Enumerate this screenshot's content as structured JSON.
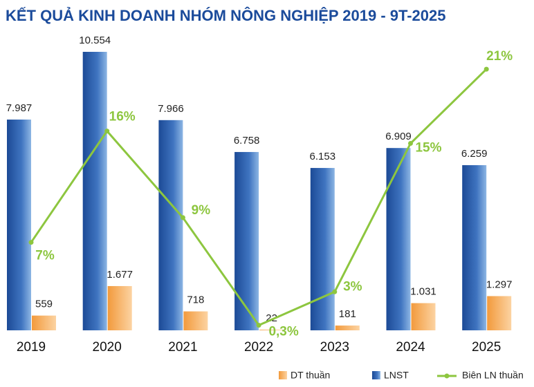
{
  "chart_data": {
    "type": "bar-line",
    "title": "KẾT QUẢ KINH DOANH NHÓM NÔNG NGHIỆP 2019 - 9T-2025",
    "categories": [
      "2019",
      "2020",
      "2021",
      "2022",
      "2023",
      "2024",
      "2025"
    ],
    "series": [
      {
        "name": "DT thuần",
        "color": "#f29a3c",
        "type": "bar",
        "values": [
          559,
          1677,
          718,
          22,
          181,
          1031,
          1297
        ],
        "value_labels": [
          "559",
          "1.677",
          "718",
          "22",
          "181",
          "1.031",
          "1.297"
        ]
      },
      {
        "name": "LNST",
        "color": "#1c4a96",
        "type": "bar",
        "values": [
          7987,
          10554,
          7966,
          6758,
          6153,
          6909,
          6259
        ],
        "value_labels": [
          "7.987",
          "10.554",
          "7.966",
          "6.758",
          "6.153",
          "6.909",
          "6.259"
        ]
      },
      {
        "name": "Biên LN thuần",
        "color": "#8dc63f",
        "type": "line",
        "values": [
          7,
          16,
          9,
          0.3,
          3,
          15,
          21
        ],
        "value_labels": [
          "7%",
          "16%",
          "9%",
          "0,3%",
          "3%",
          "15%",
          "21%"
        ]
      }
    ]
  }
}
